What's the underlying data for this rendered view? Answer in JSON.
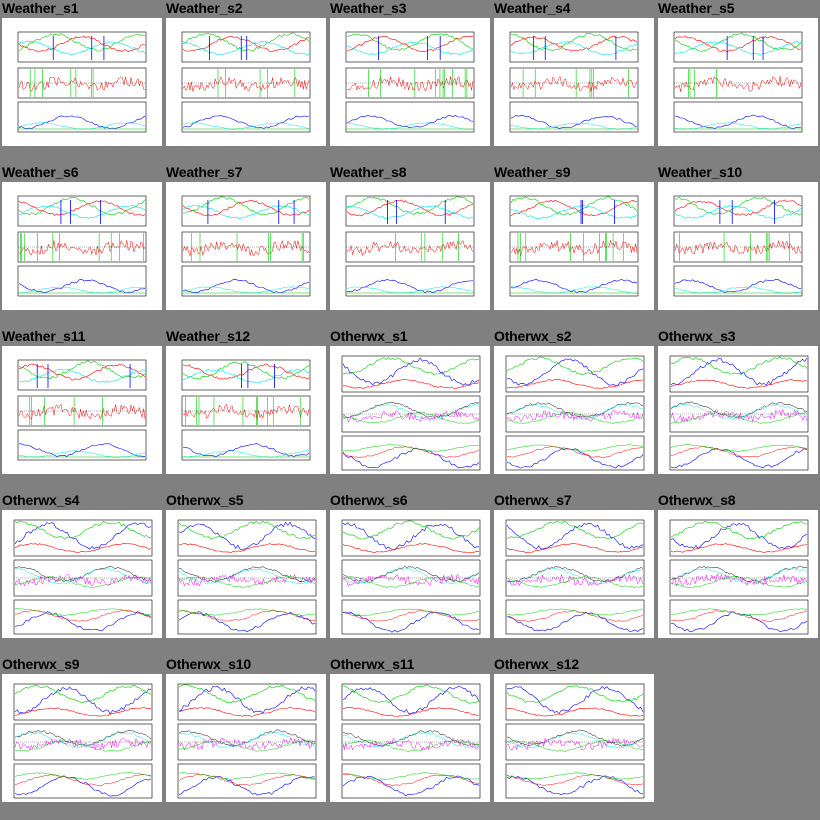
{
  "gallery": {
    "tiles": [
      {
        "title": "Weather_s1",
        "kind": "weather"
      },
      {
        "title": "Weather_s2",
        "kind": "weather"
      },
      {
        "title": "Weather_s3",
        "kind": "weather"
      },
      {
        "title": "Weather_s4",
        "kind": "weather"
      },
      {
        "title": "Weather_s5",
        "kind": "weather"
      },
      {
        "title": "Weather_s6",
        "kind": "weather"
      },
      {
        "title": "Weather_s7",
        "kind": "weather"
      },
      {
        "title": "Weather_s8",
        "kind": "weather"
      },
      {
        "title": "Weather_s9",
        "kind": "weather"
      },
      {
        "title": "Weather_s10",
        "kind": "weather"
      },
      {
        "title": "Weather_s11",
        "kind": "weather"
      },
      {
        "title": "Weather_s12",
        "kind": "weather"
      },
      {
        "title": "Otherwx_s1",
        "kind": "otherwx"
      },
      {
        "title": "Otherwx_s2",
        "kind": "otherwx"
      },
      {
        "title": "Otherwx_s3",
        "kind": "otherwx"
      },
      {
        "title": "Otherwx_s4",
        "kind": "otherwx"
      },
      {
        "title": "Otherwx_s5",
        "kind": "otherwx"
      },
      {
        "title": "Otherwx_s6",
        "kind": "otherwx"
      },
      {
        "title": "Otherwx_s7",
        "kind": "otherwx"
      },
      {
        "title": "Otherwx_s8",
        "kind": "otherwx"
      },
      {
        "title": "Otherwx_s9",
        "kind": "otherwx"
      },
      {
        "title": "Otherwx_s10",
        "kind": "otherwx"
      },
      {
        "title": "Otherwx_s11",
        "kind": "otherwx"
      },
      {
        "title": "Otherwx_s12",
        "kind": "otherwx"
      }
    ]
  },
  "colors": {
    "background": "#808080",
    "tile_bg": "#ffffff",
    "temp": "#ff0000",
    "humidity": "#00cc00",
    "pressure": "#0000ff",
    "cyan": "#00e5e5",
    "magenta": "#ff00ff",
    "frame": "#000000"
  }
}
